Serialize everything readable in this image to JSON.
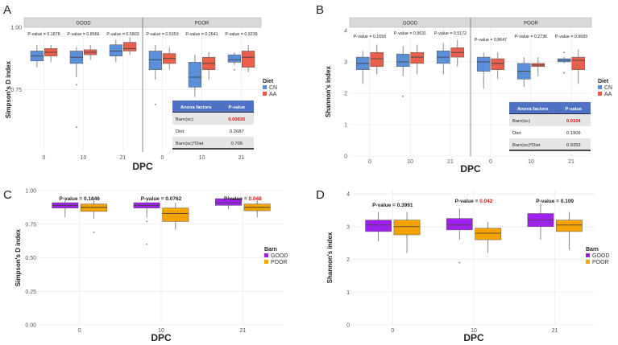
{
  "colors": {
    "cn": "#5b8fd9",
    "aa": "#e8604c",
    "good": "#a020f0",
    "poor": "#f5a300",
    "panel_bg": "#ffffff",
    "grid": "#ebebeb",
    "strip": "#d9d9d9",
    "table_header": "#4f72c4",
    "highlight": "#e01010"
  },
  "chart_data": [
    {
      "id": "A",
      "type": "boxplot",
      "letter": "A",
      "ylabel": "Simpson's D index",
      "xlabel": "DPC",
      "ylim": [
        0.5,
        1.0
      ],
      "yticks": [
        0.75,
        1.0
      ],
      "ytick_labels": [
        "0.75",
        "1.00"
      ],
      "categories": [
        "0",
        "10",
        "21"
      ],
      "facets": [
        {
          "name": "GOOD",
          "pvalues": [
            "P-value = 0.1878",
            "P-value = 0.8566",
            "P-value = 0.5803"
          ],
          "boxes": [
            {
              "cat": 0,
              "series": "CN",
              "q1": 0.865,
              "med": 0.885,
              "q3": 0.905,
              "lo": 0.84,
              "hi": 0.93,
              "out": []
            },
            {
              "cat": 0,
              "series": "AA",
              "q1": 0.885,
              "med": 0.9,
              "q3": 0.915,
              "lo": 0.86,
              "hi": 0.93,
              "out": []
            },
            {
              "cat": 1,
              "series": "CN",
              "q1": 0.855,
              "med": 0.88,
              "q3": 0.905,
              "lo": 0.8,
              "hi": 0.92,
              "out": [
                0.77,
                0.6
              ]
            },
            {
              "cat": 1,
              "series": "AA",
              "q1": 0.89,
              "med": 0.9,
              "q3": 0.91,
              "lo": 0.87,
              "hi": 0.93,
              "out": []
            },
            {
              "cat": 2,
              "series": "CN",
              "q1": 0.885,
              "med": 0.905,
              "q3": 0.93,
              "lo": 0.86,
              "hi": 0.95,
              "out": []
            },
            {
              "cat": 2,
              "series": "AA",
              "q1": 0.905,
              "med": 0.915,
              "q3": 0.94,
              "lo": 0.89,
              "hi": 0.96,
              "out": []
            }
          ]
        },
        {
          "name": "POOR",
          "pvalues": [
            "P-value = 0.5353",
            "P-value = 0.2641",
            "P-value = 0.9239"
          ],
          "boxes": [
            {
              "cat": 0,
              "series": "CN",
              "q1": 0.83,
              "med": 0.87,
              "q3": 0.905,
              "lo": 0.79,
              "hi": 0.93,
              "out": [
                0.69
              ]
            },
            {
              "cat": 0,
              "series": "AA",
              "q1": 0.855,
              "med": 0.875,
              "q3": 0.895,
              "lo": 0.83,
              "hi": 0.92,
              "out": []
            },
            {
              "cat": 1,
              "series": "CN",
              "q1": 0.76,
              "med": 0.8,
              "q3": 0.86,
              "lo": 0.72,
              "hi": 0.89,
              "out": []
            },
            {
              "cat": 1,
              "series": "AA",
              "q1": 0.83,
              "med": 0.855,
              "q3": 0.88,
              "lo": 0.79,
              "hi": 0.9,
              "out": []
            },
            {
              "cat": 2,
              "series": "CN",
              "q1": 0.86,
              "med": 0.87,
              "q3": 0.89,
              "lo": 0.85,
              "hi": 0.9,
              "out": [
                0.83
              ]
            },
            {
              "cat": 2,
              "series": "AA",
              "q1": 0.84,
              "med": 0.88,
              "q3": 0.905,
              "lo": 0.82,
              "hi": 0.93,
              "out": []
            }
          ]
        }
      ],
      "legend": {
        "title": "Diet",
        "entries": [
          "CN",
          "AA"
        ]
      },
      "table": {
        "headers": [
          "Anova factors",
          "P-value"
        ],
        "rows": [
          [
            "Barn(sc)",
            "0.00835"
          ],
          [
            "Diet",
            "0.2687"
          ],
          [
            "Barn(sc)*Diet",
            "0.705"
          ]
        ],
        "highlight_row": 0
      }
    },
    {
      "id": "B",
      "type": "boxplot",
      "letter": "B",
      "ylabel": "Shannon's index",
      "xlabel": "DPC",
      "ylim": [
        0,
        4.1
      ],
      "yticks": [
        0,
        1,
        2,
        3,
        4
      ],
      "ytick_labels": [
        "0",
        "1",
        "2",
        "3",
        "4"
      ],
      "categories": [
        "0",
        "10",
        "21"
      ],
      "facets": [
        {
          "name": "GOOD",
          "pvalues": [
            "P-value = 0.1659",
            "P-value = 0.9631",
            "P-value = 0.5172"
          ],
          "boxes": [
            {
              "cat": 0,
              "series": "CN",
              "q1": 2.75,
              "med": 2.95,
              "q3": 3.15,
              "lo": 2.3,
              "hi": 3.35,
              "out": []
            },
            {
              "cat": 0,
              "series": "AA",
              "q1": 2.85,
              "med": 3.1,
              "q3": 3.3,
              "lo": 2.6,
              "hi": 3.55,
              "out": []
            },
            {
              "cat": 1,
              "series": "CN",
              "q1": 2.85,
              "med": 3.0,
              "q3": 3.25,
              "lo": 2.55,
              "hi": 3.5,
              "out": [
                1.9
              ]
            },
            {
              "cat": 1,
              "series": "AA",
              "q1": 2.95,
              "med": 3.15,
              "q3": 3.3,
              "lo": 2.6,
              "hi": 3.55,
              "out": []
            },
            {
              "cat": 2,
              "series": "CN",
              "q1": 2.95,
              "med": 3.15,
              "q3": 3.35,
              "lo": 2.6,
              "hi": 3.6,
              "out": []
            },
            {
              "cat": 2,
              "series": "AA",
              "q1": 3.15,
              "med": 3.3,
              "q3": 3.45,
              "lo": 2.85,
              "hi": 3.7,
              "out": []
            }
          ]
        },
        {
          "name": "POOR",
          "pvalues": [
            "P-value = 0.8647",
            "P-value = 0.2736",
            "P-value = 0.9683"
          ],
          "boxes": [
            {
              "cat": 0,
              "series": "CN",
              "q1": 2.7,
              "med": 3.0,
              "q3": 3.15,
              "lo": 2.15,
              "hi": 3.3,
              "out": []
            },
            {
              "cat": 0,
              "series": "AA",
              "q1": 2.75,
              "med": 2.95,
              "q3": 3.1,
              "lo": 2.45,
              "hi": 3.3,
              "out": []
            },
            {
              "cat": 1,
              "series": "CN",
              "q1": 2.45,
              "med": 2.7,
              "q3": 2.95,
              "lo": 2.2,
              "hi": 3.15,
              "out": []
            },
            {
              "cat": 1,
              "series": "AA",
              "q1": 2.85,
              "med": 2.9,
              "q3": 2.95,
              "lo": 2.55,
              "hi": 3.15,
              "out": []
            },
            {
              "cat": 2,
              "series": "CN",
              "q1": 3.0,
              "med": 3.05,
              "q3": 3.1,
              "lo": 2.95,
              "hi": 3.15,
              "out": [
                3.3,
                2.65
              ]
            },
            {
              "cat": 2,
              "series": "AA",
              "q1": 2.75,
              "med": 3.05,
              "q3": 3.15,
              "lo": 2.3,
              "hi": 3.4,
              "out": []
            }
          ]
        }
      ],
      "legend": {
        "title": "Diet",
        "entries": [
          "CN",
          "AA"
        ]
      },
      "table": {
        "headers": [
          "Anova factors",
          "P-value"
        ],
        "rows": [
          [
            "Barn(sc)",
            "0.0104"
          ],
          [
            "Diet",
            "0.1909"
          ],
          [
            "Barn(sc)*Diet",
            "0.9353"
          ]
        ],
        "highlight_row": 0
      }
    },
    {
      "id": "C",
      "type": "boxplot",
      "letter": "C",
      "ylabel": "Simpson's D index",
      "xlabel": "DPC",
      "ylim": [
        0,
        1.0
      ],
      "yticks": [
        0,
        0.25,
        0.5,
        0.75,
        1.0
      ],
      "ytick_labels": [
        "0.00",
        "0.25",
        "0.50",
        "0.75",
        "1.00"
      ],
      "categories": [
        "0",
        "10",
        "21"
      ],
      "pvalue_prefix": "P-value = ",
      "pvalues": [
        "0.1846",
        "0.0762",
        "0.048"
      ],
      "pvalue_significant": [
        false,
        false,
        true
      ],
      "boxes": [
        {
          "cat": 0,
          "series": "GOOD",
          "q1": 0.87,
          "med": 0.89,
          "q3": 0.91,
          "lo": 0.8,
          "hi": 0.93,
          "out": []
        },
        {
          "cat": 0,
          "series": "POOR",
          "q1": 0.845,
          "med": 0.875,
          "q3": 0.9,
          "lo": 0.79,
          "hi": 0.93,
          "out": [
            0.69
          ]
        },
        {
          "cat": 1,
          "series": "GOOD",
          "q1": 0.87,
          "med": 0.89,
          "q3": 0.91,
          "lo": 0.8,
          "hi": 0.93,
          "out": [
            0.6,
            0.77
          ]
        },
        {
          "cat": 1,
          "series": "POOR",
          "q1": 0.77,
          "med": 0.83,
          "q3": 0.87,
          "lo": 0.71,
          "hi": 0.91,
          "out": []
        },
        {
          "cat": 2,
          "series": "GOOD",
          "q1": 0.89,
          "med": 0.91,
          "q3": 0.94,
          "lo": 0.86,
          "hi": 0.96,
          "out": []
        },
        {
          "cat": 2,
          "series": "POOR",
          "q1": 0.85,
          "med": 0.875,
          "q3": 0.9,
          "lo": 0.8,
          "hi": 0.93,
          "out": []
        }
      ],
      "legend": {
        "title": "Barn",
        "entries": [
          "GOOD",
          "POOR"
        ]
      }
    },
    {
      "id": "D",
      "type": "boxplot",
      "letter": "D",
      "ylabel": "Shannon's index",
      "xlabel": "DPC",
      "ylim": [
        0,
        4.1
      ],
      "yticks": [
        0,
        1,
        2,
        3,
        4
      ],
      "ytick_labels": [
        "0",
        "1",
        "2",
        "3",
        "4"
      ],
      "categories": [
        "0",
        "10",
        "21"
      ],
      "pvalue_prefix": "P-value = ",
      "pvalues": [
        "0.3991",
        "0.042",
        "0.109"
      ],
      "pvalue_significant": [
        false,
        true,
        false
      ],
      "boxes": [
        {
          "cat": 0,
          "series": "GOOD",
          "q1": 2.85,
          "med": 3.05,
          "q3": 3.2,
          "lo": 2.55,
          "hi": 3.45,
          "out": []
        },
        {
          "cat": 0,
          "series": "POOR",
          "q1": 2.75,
          "med": 3.0,
          "q3": 3.2,
          "lo": 2.2,
          "hi": 3.45,
          "out": []
        },
        {
          "cat": 1,
          "series": "GOOD",
          "q1": 2.9,
          "med": 3.05,
          "q3": 3.25,
          "lo": 2.6,
          "hi": 3.55,
          "out": [
            1.9
          ]
        },
        {
          "cat": 1,
          "series": "POOR",
          "q1": 2.6,
          "med": 2.8,
          "q3": 2.95,
          "lo": 2.2,
          "hi": 3.15,
          "out": []
        },
        {
          "cat": 2,
          "series": "GOOD",
          "q1": 3.0,
          "med": 3.2,
          "q3": 3.4,
          "lo": 2.6,
          "hi": 3.7,
          "out": []
        },
        {
          "cat": 2,
          "series": "POOR",
          "q1": 2.85,
          "med": 3.05,
          "q3": 3.2,
          "lo": 2.3,
          "hi": 3.45,
          "out": []
        }
      ],
      "legend": {
        "title": "Barn",
        "entries": [
          "GOOD",
          "POOR"
        ]
      }
    }
  ]
}
